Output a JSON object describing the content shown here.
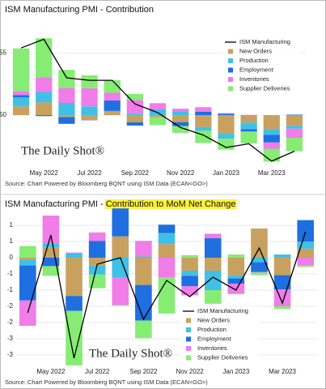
{
  "chart_data": [
    {
      "type": "bar",
      "title": "ISM Manufacturing PMI - Contribution",
      "categories": [
        null,
        "May 2022",
        null,
        "Jul 2022",
        null,
        "Sep 2022",
        null,
        "Nov 2022",
        null,
        "Jan 2023",
        null,
        "Mar 2023",
        null
      ],
      "series": [
        {
          "name": "New Orders",
          "color": "#c9a15f",
          "values": [
            0.7,
            1.02,
            -0.16,
            -0.4,
            0.26,
            -0.58,
            -0.16,
            -0.56,
            -0.96,
            -1.5,
            -0.6,
            -1.14,
            -0.86
          ]
        },
        {
          "name": "Production",
          "color": "#3fc1e6",
          "values": [
            0.72,
            0.84,
            0.98,
            0.7,
            0.08,
            0.12,
            0.46,
            0.3,
            -0.3,
            -0.4,
            -0.54,
            -0.44,
            -0.22
          ]
        },
        {
          "name": "Employment",
          "color": "#1f6fe0",
          "values": [
            0.18,
            -0.08,
            -0.54,
            -0.02,
            0.84,
            -0.26,
            0,
            -0.32,
            0.28,
            0.12,
            -0.18,
            -0.62,
            0.04
          ]
        },
        {
          "name": "Inventories",
          "color": "#f07de8",
          "values": [
            0.32,
            1.18,
            1.2,
            1.46,
            0.62,
            1.1,
            0.5,
            0.22,
            0.36,
            0.04,
            0.02,
            -0.5,
            -0.74
          ]
        },
        {
          "name": "Supplier Deliveries",
          "color": "#86ec74",
          "values": [
            3.44,
            3.14,
            1.46,
            1.04,
            1.02,
            0.48,
            -0.64,
            -0.56,
            -0.98,
            -0.88,
            -0.96,
            -1.04,
            -1.08
          ]
        },
        {
          "name": "ISM Manufacturing",
          "color": "#000000",
          "type": "line",
          "values": [
            55.4,
            56.1,
            53.0,
            52.8,
            52.8,
            50.9,
            50.2,
            49.0,
            48.4,
            47.4,
            47.7,
            46.3,
            47.1
          ]
        }
      ],
      "ylim": [
        45.9,
        57.3
      ],
      "yticks": [
        50,
        55
      ],
      "grid": true,
      "watermark": "The Daily Shot®",
      "source": "Source: Chart Powered by Bloomberg BQNT using ISM Data   (ECAN<GO>)"
    },
    {
      "type": "bar",
      "title": "ISM Manufacturing PMI -",
      "title_highlight": "Contribution to MoM Net Change",
      "categories": [
        null,
        "May 2022",
        null,
        "Jul 2022",
        null,
        "Sep 2022",
        null,
        "Nov 2022",
        null,
        "Jan 2023",
        null,
        "Mar 2023",
        null
      ],
      "series": [
        {
          "name": "New Orders",
          "color": "#c9a15f",
          "values": [
            -0.06,
            0.32,
            -1.18,
            -0.24,
            0.66,
            -0.84,
            0.42,
            -0.4,
            -0.4,
            -0.54,
            0.9,
            -0.54,
            0.28
          ]
        },
        {
          "name": "Production",
          "color": "#3fc1e6",
          "values": [
            -0.18,
            0.12,
            0.14,
            -0.28,
            -0.62,
            0.04,
            0.34,
            -0.16,
            -0.6,
            -0.1,
            -0.14,
            0.1,
            0.22
          ]
        },
        {
          "name": "Employment",
          "color": "#1f6fe0",
          "values": [
            -1.08,
            -0.26,
            -0.46,
            0.52,
            0.86,
            -1.1,
            0.26,
            -0.32,
            0.6,
            -0.16,
            -0.3,
            -0.44,
            0.66
          ]
        },
        {
          "name": "Inventories",
          "color": "#f07de8",
          "values": [
            -0.78,
            0.86,
            0.02,
            0.26,
            -0.84,
            0.48,
            -0.6,
            -0.28,
            0.14,
            -0.32,
            -0.02,
            -0.52,
            -0.24
          ]
        },
        {
          "name": "Supplier Deliveries",
          "color": "#86ec74",
          "values": [
            0.36,
            -0.3,
            -1.68,
            -0.42,
            -0.02,
            -0.54,
            -1.12,
            0.08,
            -0.42,
            0.1,
            -0.08,
            -0.08,
            -0.04
          ]
        },
        {
          "name": "ISM Manufacturing",
          "color": "#000000",
          "type": "line",
          "values": [
            -1.7,
            0.7,
            -3.1,
            -0.2,
            0.0,
            -1.9,
            -0.7,
            -1.2,
            -0.6,
            -1.0,
            0.3,
            -1.4,
            0.8
          ]
        }
      ],
      "ylim": [
        -3.3,
        1.1
      ],
      "yticks": [
        1,
        {
          "value": 0.5,
          "label": "1"
        },
        0,
        {
          "value": -0.5,
          "label": "-1"
        },
        -1,
        {
          "value": -1.5,
          "label": "-2"
        },
        -2,
        {
          "value": -2.5,
          "label": "-3"
        },
        -3
      ],
      "grid": true,
      "watermark": "The Daily Shot®",
      "source": "Source: Chart Powered by Bloomberg BQNT using ISM Data   (ECAN<GO>)"
    }
  ]
}
